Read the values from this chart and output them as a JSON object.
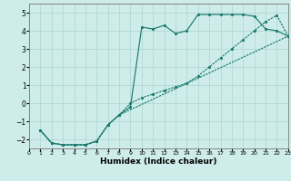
{
  "xlabel": "Humidex (Indice chaleur)",
  "bg_color": "#ceecea",
  "line_color": "#1a7a6e",
  "xlim": [
    0,
    23
  ],
  "ylim": [
    -2.5,
    5.5
  ],
  "xticks": [
    0,
    1,
    2,
    3,
    4,
    5,
    6,
    7,
    8,
    9,
    10,
    11,
    12,
    13,
    14,
    15,
    16,
    17,
    18,
    19,
    20,
    21,
    22,
    23
  ],
  "yticks": [
    -2,
    -1,
    0,
    1,
    2,
    3,
    4,
    5
  ],
  "curve1_x": [
    1,
    2,
    3,
    4,
    5,
    6,
    7,
    8,
    9,
    10,
    11,
    12,
    13,
    14,
    15,
    16,
    17,
    18,
    19,
    20,
    21,
    22,
    23
  ],
  "curve1_y": [
    -1.5,
    -2.2,
    -2.3,
    -2.3,
    -2.3,
    -2.1,
    -1.2,
    -0.65,
    -0.2,
    4.2,
    4.1,
    4.3,
    3.85,
    4.0,
    4.9,
    4.9,
    4.9,
    4.9,
    4.9,
    4.8,
    4.1,
    4.0,
    3.7
  ],
  "curve2_x": [
    1,
    2,
    3,
    4,
    5,
    6,
    7,
    8,
    9,
    10,
    11,
    12,
    13,
    14,
    15,
    16,
    17,
    18,
    19,
    20,
    21,
    22,
    23
  ],
  "curve2_y": [
    -1.5,
    -2.2,
    -2.3,
    -2.3,
    -2.3,
    -2.1,
    -1.2,
    -0.65,
    0.0,
    0.3,
    0.5,
    0.7,
    0.9,
    1.1,
    1.5,
    2.0,
    2.5,
    3.0,
    3.5,
    4.0,
    4.5,
    4.85,
    3.7
  ],
  "curve3_x": [
    1,
    2,
    3,
    4,
    5,
    6,
    7,
    8,
    23
  ],
  "curve3_y": [
    -1.5,
    -2.2,
    -2.3,
    -2.3,
    -2.3,
    -2.1,
    -1.2,
    -0.65,
    3.7
  ]
}
